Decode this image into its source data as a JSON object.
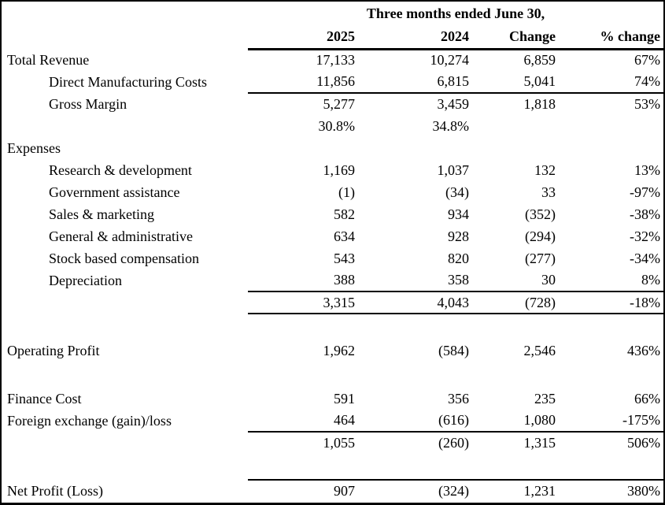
{
  "table": {
    "title": "Three months ended June 30,",
    "columns": [
      "2025",
      "2024",
      "Change",
      "% change"
    ],
    "colors": {
      "border": "#000000",
      "background": "#ffffff",
      "text": "#000000"
    },
    "rows": [
      {
        "label": "Total Revenue",
        "indent": false,
        "values": [
          "17,133",
          "10,274",
          "6,859",
          "67%"
        ]
      },
      {
        "label": "Direct Manufacturing Costs",
        "indent": true,
        "values": [
          "11,856",
          "6,815",
          "5,041",
          "74%"
        ],
        "line_below": true
      },
      {
        "label": "Gross Margin",
        "indent": true,
        "values": [
          "5,277",
          "3,459",
          "1,818",
          "53%"
        ]
      },
      {
        "label": "",
        "indent": false,
        "values": [
          "30.8%",
          "34.8%",
          "",
          ""
        ]
      },
      {
        "label": "Expenses",
        "indent": false,
        "values": [
          "",
          "",
          "",
          ""
        ]
      },
      {
        "label": "Research & development",
        "indent": true,
        "values": [
          "1,169",
          "1,037",
          "132",
          "13%"
        ]
      },
      {
        "label": "Government assistance",
        "indent": true,
        "values": [
          "(1)",
          "(34)",
          "33",
          "-97%"
        ]
      },
      {
        "label": "Sales & marketing",
        "indent": true,
        "values": [
          "582",
          "934",
          "(352)",
          "-38%"
        ]
      },
      {
        "label": "General & administrative",
        "indent": true,
        "values": [
          "634",
          "928",
          "(294)",
          "-32%"
        ]
      },
      {
        "label": "Stock based compensation",
        "indent": true,
        "values": [
          "543",
          "820",
          "(277)",
          "-34%"
        ]
      },
      {
        "label": "Depreciation",
        "indent": true,
        "values": [
          "388",
          "358",
          "30",
          "8%"
        ],
        "line_below": true
      },
      {
        "label": "",
        "indent": false,
        "values": [
          "3,315",
          "4,043",
          "(728)",
          "-18%"
        ],
        "line_below": true
      },
      {
        "spacer": true
      },
      {
        "label": "Operating Profit",
        "indent": false,
        "values": [
          "1,962",
          "(584)",
          "2,546",
          "436%"
        ]
      },
      {
        "spacer": true
      },
      {
        "label": "Finance Cost",
        "indent": false,
        "values": [
          "591",
          "356",
          "235",
          "66%"
        ]
      },
      {
        "label": "Foreign exchange (gain)/loss",
        "indent": false,
        "values": [
          "464",
          "(616)",
          "1,080",
          "-175%"
        ],
        "line_below": true
      },
      {
        "label": "",
        "indent": false,
        "values": [
          "1,055",
          "(260)",
          "1,315",
          "506%"
        ]
      },
      {
        "spacer": true
      },
      {
        "label": "Net Profit (Loss)",
        "indent": false,
        "values": [
          "907",
          "(324)",
          "1,231",
          "380%"
        ],
        "line_above": true
      }
    ]
  }
}
